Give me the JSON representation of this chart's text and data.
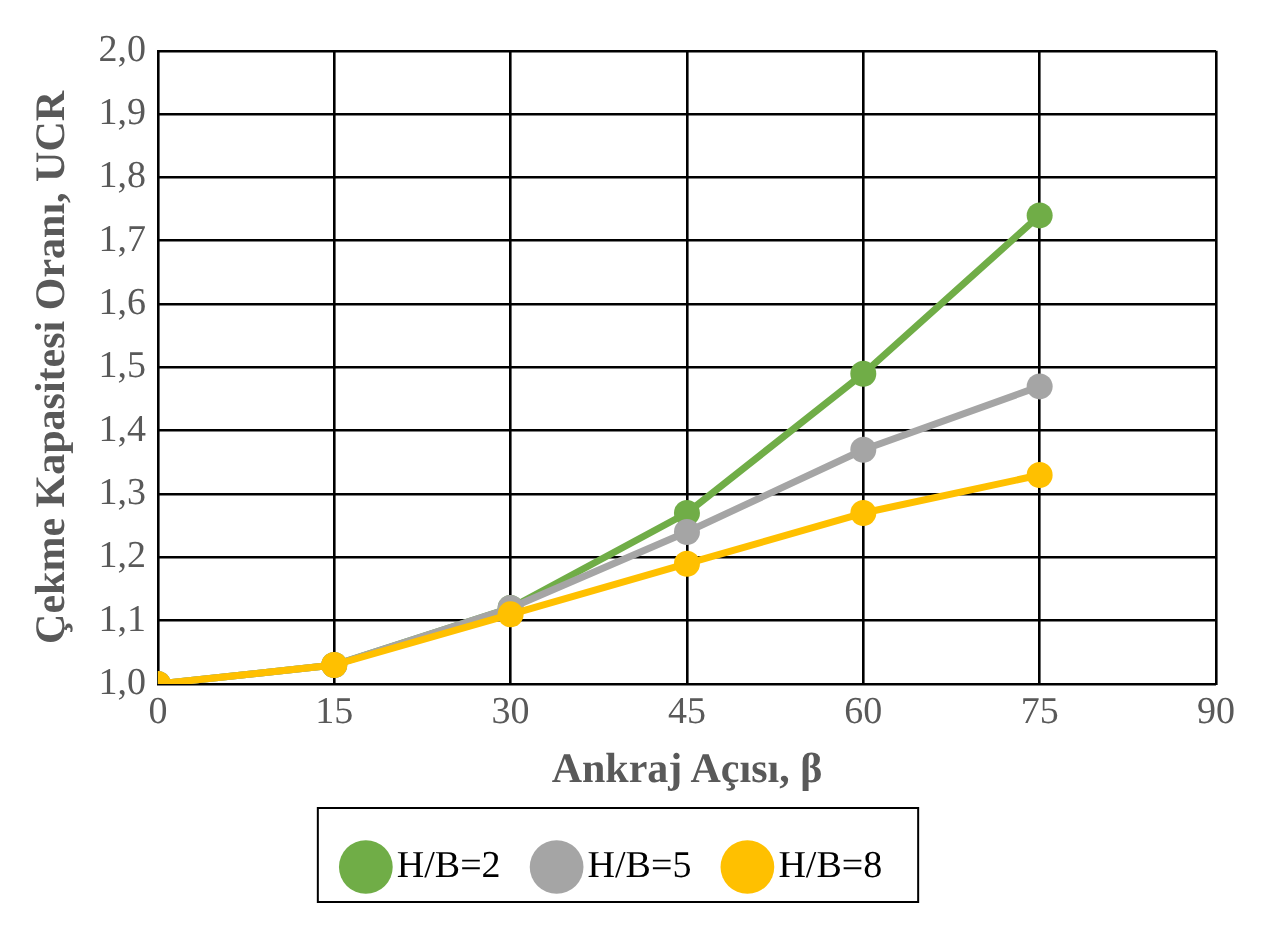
{
  "chart_data": {
    "type": "line",
    "xlabel": "Ankraj Açısı, β",
    "ylabel": "Çekme Kapasitesi Oranı, UCR",
    "x": [
      0,
      15,
      30,
      45,
      60,
      75
    ],
    "series": [
      {
        "name": "H/B=2",
        "color": "#70ad47",
        "values": [
          1.0,
          1.03,
          1.12,
          1.27,
          1.49,
          1.74
        ]
      },
      {
        "name": "H/B=5",
        "color": "#a5a5a5",
        "values": [
          1.0,
          1.03,
          1.12,
          1.24,
          1.37,
          1.47
        ]
      },
      {
        "name": "H/B=8",
        "color": "#ffc000",
        "values": [
          1.0,
          1.03,
          1.11,
          1.19,
          1.27,
          1.33
        ]
      }
    ],
    "xlim": [
      0,
      90
    ],
    "xticks": [
      0,
      15,
      30,
      45,
      60,
      75,
      90
    ],
    "ylim": [
      1.0,
      2.0
    ],
    "yticks": [
      {
        "value": 1.0,
        "label": "1,0"
      },
      {
        "value": 1.1,
        "label": "1,1"
      },
      {
        "value": 1.2,
        "label": "1,2"
      },
      {
        "value": 1.3,
        "label": "1,3"
      },
      {
        "value": 1.4,
        "label": "1,4"
      },
      {
        "value": 1.5,
        "label": "1,5"
      },
      {
        "value": 1.6,
        "label": "1,6"
      },
      {
        "value": 1.7,
        "label": "1,7"
      },
      {
        "value": 1.8,
        "label": "1,8"
      },
      {
        "value": 1.9,
        "label": "1,9"
      },
      {
        "value": 2.0,
        "label": "2,0"
      }
    ],
    "grid": true,
    "legend": "bottom",
    "marker": "circle",
    "line_style": "solid"
  }
}
